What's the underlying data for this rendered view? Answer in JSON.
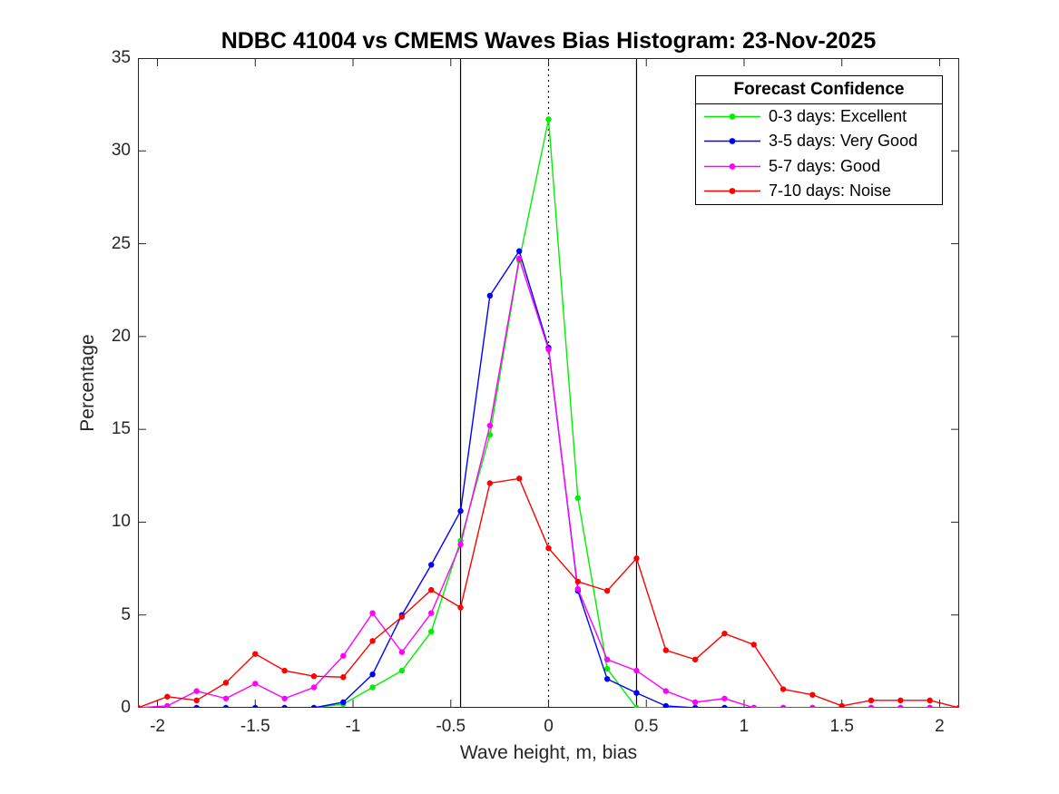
{
  "chart_data": {
    "type": "line",
    "title": "NDBC 41004 vs CMEMS Waves Bias Histogram: 23-Nov-2025",
    "xlabel": "Wave height, m, bias",
    "ylabel": "Percentage",
    "xlim": [
      -2.1,
      2.1
    ],
    "ylim": [
      0,
      35
    ],
    "grid": false,
    "xticks": [
      -2,
      -1.5,
      -1,
      -0.5,
      0,
      0.5,
      1,
      1.5,
      2
    ],
    "xtick_labels": [
      "-2",
      "-1.5",
      "-1",
      "-0.5",
      "0",
      "0.5",
      "1",
      "1.5",
      "2"
    ],
    "yticks": [
      0,
      5,
      10,
      15,
      20,
      25,
      30,
      35
    ],
    "ytick_labels": [
      "0",
      "5",
      "10",
      "15",
      "20",
      "25",
      "30",
      "35"
    ],
    "legend": {
      "title": "Forecast Confidence",
      "position": "top-right"
    },
    "reference_lines": [
      {
        "x": -0.45,
        "style": "solid",
        "color": "#000000"
      },
      {
        "x": 0,
        "style": "dotted",
        "color": "#000000"
      },
      {
        "x": 0.45,
        "style": "solid",
        "color": "#000000"
      }
    ],
    "bin_width": 0.15,
    "x": [
      -2.1,
      -1.95,
      -1.8,
      -1.65,
      -1.5,
      -1.35,
      -1.2,
      -1.05,
      -0.9,
      -0.75,
      -0.6,
      -0.45,
      -0.3,
      -0.15,
      0,
      0.15,
      0.3,
      0.45,
      0.6,
      0.75,
      0.9,
      1.05,
      1.2,
      1.35,
      1.5,
      1.65,
      1.8,
      1.95,
      2.1
    ],
    "series": [
      {
        "name": "0-3 days: Excellent",
        "color": "#00f000",
        "values": [
          0,
          0,
          0,
          0,
          0,
          0,
          0,
          0.2,
          1.1,
          2.0,
          4.1,
          9.0,
          14.7,
          24.1,
          31.7,
          11.3,
          2.1,
          0,
          0,
          0,
          0,
          0,
          0,
          0,
          0,
          0,
          0,
          0,
          0
        ]
      },
      {
        "name": "3-5 days: Very Good",
        "color": "#0000ff",
        "values": [
          0,
          0,
          0,
          0,
          0,
          0,
          0,
          0.3,
          1.8,
          5.0,
          7.7,
          10.6,
          22.2,
          24.6,
          19.4,
          6.3,
          1.55,
          0.8,
          0.1,
          0,
          0,
          0,
          0,
          0,
          0,
          0,
          0,
          0,
          0
        ]
      },
      {
        "name": "5-7 days: Good",
        "color": "#ff00ff",
        "values": [
          0,
          0.1,
          0.9,
          0.5,
          1.3,
          0.5,
          1.1,
          2.8,
          5.1,
          3.0,
          5.1,
          8.8,
          15.2,
          24.2,
          19.3,
          6.4,
          2.6,
          2.0,
          0.9,
          0.3,
          0.5,
          0,
          0,
          0,
          0,
          0,
          0,
          0,
          0
        ]
      },
      {
        "name": "7-10 days: Noise",
        "color": "#ff0000",
        "values": [
          0,
          0.6,
          0.4,
          1.35,
          2.9,
          2.0,
          1.7,
          1.65,
          3.6,
          4.9,
          6.35,
          5.4,
          12.1,
          12.35,
          8.6,
          6.8,
          6.3,
          8.05,
          3.1,
          2.6,
          4.0,
          3.4,
          1.0,
          0.7,
          0.1,
          0.4,
          0.4,
          0.4,
          0
        ]
      }
    ]
  }
}
